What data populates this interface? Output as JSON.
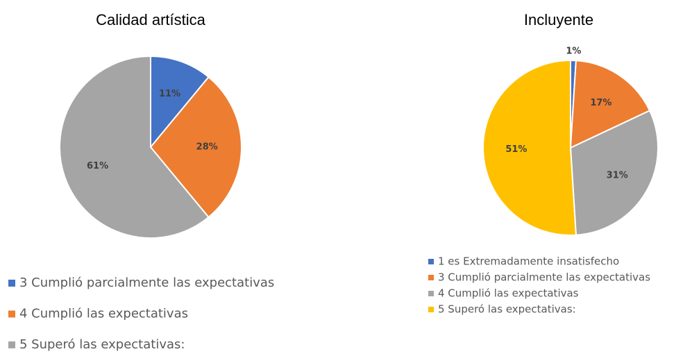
{
  "chart_data": [
    {
      "type": "pie",
      "title": "Calidad artística",
      "categories": [
        "3 Cumplió parcialmente las expectativas",
        "4 Cumplió las expectativas",
        "5 Superó las expectativas:"
      ],
      "values": [
        11,
        28,
        61
      ],
      "value_labels": [
        "11%",
        "28%",
        "61%"
      ],
      "colors": [
        "#4472c4",
        "#ed7d31",
        "#a5a5a5"
      ],
      "legend": "bottom"
    },
    {
      "type": "pie",
      "title": "Incluyente",
      "categories": [
        "1 es Extremadamente insatisfecho",
        "3 Cumplió parcialmente las expectativas",
        "4 Cumplió las expectativas",
        "5 Superó las expectativas:"
      ],
      "values": [
        1,
        17,
        31,
        51
      ],
      "value_labels": [
        "1%",
        "17%",
        "31%",
        "51%"
      ],
      "colors": [
        "#4472c4",
        "#ed7d31",
        "#a5a5a5",
        "#ffc000"
      ],
      "legend": "bottom"
    }
  ]
}
